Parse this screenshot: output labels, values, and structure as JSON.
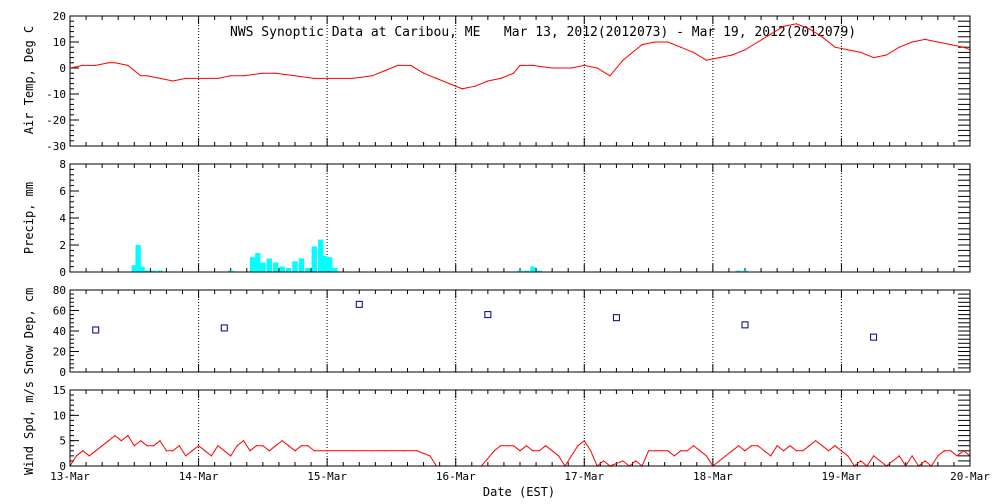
{
  "title": "NWS Synoptic Data at Caribou, ME   Mar 13, 2012(2012073) - Mar 19, 2012(2012079)",
  "x_axis": {
    "label": "Date (EST)",
    "tick_labels": [
      "13-Mar",
      "14-Mar",
      "15-Mar",
      "16-Mar",
      "17-Mar",
      "18-Mar",
      "19-Mar",
      "20-Mar"
    ],
    "range_days": [
      13,
      20
    ]
  },
  "colors": {
    "temp": "#ff0000",
    "precip": "#00ffff",
    "snow": "#000080",
    "wind": "#ff0000",
    "axis": "#000000"
  },
  "chart_data": [
    {
      "type": "line",
      "name": "air-temp",
      "ylabel": "Air Temp, Deg C",
      "ylim": [
        -30,
        20
      ],
      "yticks": [
        -30,
        -20,
        -10,
        0,
        10,
        20
      ],
      "x": [
        13.0,
        13.1,
        13.2,
        13.3,
        13.35,
        13.45,
        13.55,
        13.6,
        13.7,
        13.8,
        13.9,
        14.0,
        14.15,
        14.25,
        14.35,
        14.5,
        14.6,
        14.75,
        14.9,
        15.0,
        15.2,
        15.35,
        15.45,
        15.55,
        15.65,
        15.75,
        15.85,
        15.95,
        16.05,
        16.15,
        16.25,
        16.35,
        16.45,
        16.5,
        16.6,
        16.75,
        16.9,
        17.0,
        17.1,
        17.2,
        17.3,
        17.45,
        17.55,
        17.65,
        17.75,
        17.85,
        17.95,
        18.05,
        18.15,
        18.25,
        18.35,
        18.45,
        18.55,
        18.65,
        18.75,
        18.85,
        18.95,
        19.05,
        19.15,
        19.25,
        19.35,
        19.45,
        19.55,
        19.65,
        19.75,
        19.85,
        19.95,
        20.0
      ],
      "y": [
        0,
        1,
        1,
        2,
        2,
        1,
        -3,
        -3,
        -4,
        -5,
        -4,
        -4,
        -4,
        -3,
        -3,
        -2,
        -2,
        -3,
        -4,
        -4,
        -4,
        -3,
        -1,
        1,
        1,
        -2,
        -4,
        -6,
        -8,
        -7,
        -5,
        -4,
        -2,
        1,
        1,
        0,
        0,
        1,
        0,
        -3,
        3,
        9,
        10,
        10,
        8,
        6,
        3,
        4,
        5,
        7,
        10,
        13,
        16,
        17,
        15,
        12,
        8,
        7,
        6,
        4,
        5,
        8,
        10,
        11,
        10,
        9,
        8,
        7
      ]
    },
    {
      "type": "bar",
      "name": "precip",
      "ylabel": "Precip, mm",
      "ylim": [
        0,
        8
      ],
      "yticks": [
        0,
        2,
        4,
        6,
        8
      ],
      "x": [
        13.5,
        13.53,
        13.56,
        13.6,
        13.65,
        13.7,
        14.25,
        14.42,
        14.46,
        14.5,
        14.55,
        14.6,
        14.65,
        14.7,
        14.75,
        14.8,
        14.85,
        14.9,
        14.95,
        14.98,
        15.02,
        15.06,
        16.5,
        16.55,
        16.6,
        16.65,
        18.2,
        18.25
      ],
      "values": [
        0.5,
        2.0,
        0.4,
        0.1,
        0.1,
        0.1,
        0.1,
        1.1,
        1.4,
        0.7,
        1.0,
        0.7,
        0.4,
        0.3,
        0.8,
        1.0,
        0.3,
        1.9,
        2.4,
        1.2,
        1.1,
        0.3,
        0.1,
        0.1,
        0.4,
        0.1,
        0.1,
        0.1
      ]
    },
    {
      "type": "scatter",
      "name": "snow-depth",
      "ylabel": "Snow Dep, cm",
      "ylim": [
        0,
        80
      ],
      "yticks": [
        0,
        20,
        40,
        60,
        80
      ],
      "x": [
        13.2,
        14.2,
        15.25,
        16.25,
        17.25,
        18.25,
        19.25
      ],
      "y": [
        41,
        43,
        66,
        56,
        53,
        46,
        34
      ]
    },
    {
      "type": "line",
      "name": "wind-speed",
      "ylabel": "Wind Spd, m/s",
      "ylim": [
        0,
        15
      ],
      "yticks": [
        0,
        5,
        10,
        15
      ],
      "x": [
        13.0,
        13.05,
        13.1,
        13.15,
        13.2,
        13.25,
        13.3,
        13.35,
        13.4,
        13.45,
        13.5,
        13.55,
        13.6,
        13.65,
        13.7,
        13.75,
        13.8,
        13.85,
        13.9,
        13.95,
        14.0,
        14.05,
        14.1,
        14.15,
        14.2,
        14.25,
        14.3,
        14.35,
        14.4,
        14.45,
        14.5,
        14.55,
        14.6,
        14.65,
        14.7,
        14.75,
        14.8,
        14.85,
        14.9,
        15.0,
        15.2,
        15.35,
        15.45,
        15.6,
        15.7,
        15.8,
        15.85,
        16.2,
        16.3,
        16.35,
        16.4,
        16.45,
        16.5,
        16.55,
        16.6,
        16.65,
        16.7,
        16.75,
        16.8,
        16.85,
        16.9,
        16.95,
        17.0,
        17.05,
        17.1,
        17.15,
        17.2,
        17.3,
        17.35,
        17.4,
        17.45,
        17.5,
        17.55,
        17.6,
        17.65,
        17.7,
        17.75,
        17.8,
        17.85,
        17.9,
        17.95,
        18.0,
        18.05,
        18.1,
        18.15,
        18.2,
        18.25,
        18.3,
        18.35,
        18.4,
        18.45,
        18.5,
        18.55,
        18.6,
        18.65,
        18.7,
        18.75,
        18.8,
        18.85,
        18.9,
        18.95,
        19.0,
        19.05,
        19.1,
        19.15,
        19.2,
        19.25,
        19.3,
        19.35,
        19.4,
        19.45,
        19.5,
        19.55,
        19.6,
        19.65,
        19.7,
        19.75,
        19.8,
        19.85,
        19.9,
        19.95,
        20.0
      ],
      "y": [
        0,
        2,
        3,
        2,
        3,
        4,
        5,
        6,
        5,
        6,
        4,
        5,
        4,
        4,
        5,
        3,
        3,
        4,
        2,
        3,
        4,
        3,
        2,
        4,
        3,
        2,
        4,
        5,
        3,
        4,
        4,
        3,
        4,
        5,
        4,
        3,
        4,
        4,
        3,
        3,
        3,
        3,
        3,
        3,
        3,
        2,
        0,
        0,
        3,
        4,
        4,
        4,
        3,
        4,
        3,
        3,
        4,
        3,
        2,
        0,
        2,
        4,
        5,
        3,
        0,
        1,
        0,
        1,
        0,
        1,
        0,
        3,
        3,
        3,
        3,
        2,
        3,
        3,
        4,
        3,
        2,
        0,
        1,
        2,
        3,
        4,
        3,
        4,
        4,
        3,
        2,
        4,
        3,
        4,
        3,
        3,
        4,
        5,
        4,
        3,
        4,
        3,
        2,
        0,
        1,
        0,
        2,
        1,
        0,
        1,
        2,
        0,
        2,
        0,
        1,
        0,
        2,
        3,
        3,
        2,
        3,
        2
      ]
    }
  ]
}
